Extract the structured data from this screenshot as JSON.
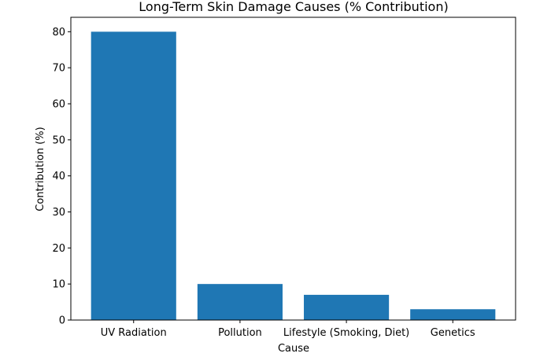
{
  "chart_data": {
    "type": "bar",
    "title": "Long-Term Skin Damage Causes (% Contribution)",
    "xlabel": "Cause",
    "ylabel": "Contribution (%)",
    "categories": [
      "UV Radiation",
      "Pollution",
      "Lifestyle (Smoking, Diet)",
      "Genetics"
    ],
    "values": [
      80,
      10,
      7,
      3
    ],
    "ylim": [
      0,
      84
    ],
    "yticks": [
      0,
      10,
      20,
      30,
      40,
      50,
      60,
      70,
      80
    ],
    "grid": false,
    "legend": "none",
    "bar_color": "#1f77b4"
  }
}
